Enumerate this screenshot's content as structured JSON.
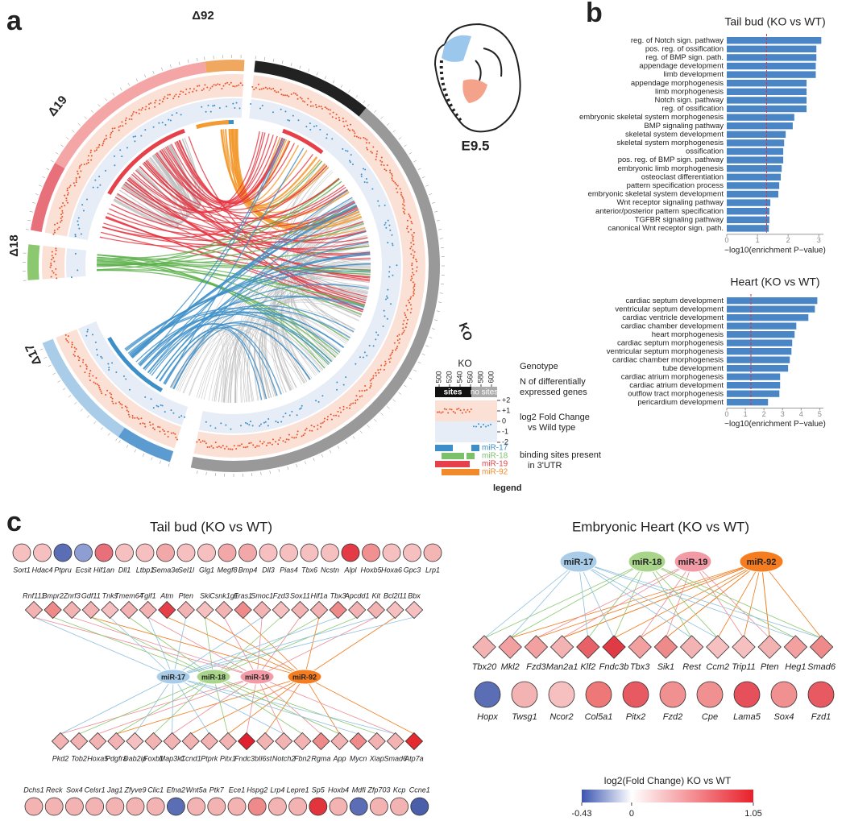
{
  "panel_labels": [
    "a",
    "b",
    "c"
  ],
  "circos": {
    "segments": [
      "Δ92",
      "Δ19",
      "Δ18",
      "Δ17",
      "KO"
    ],
    "stage": "E9.5",
    "legend": {
      "genotype": "KO",
      "sites": "sites",
      "no_sites": "no sites",
      "position_ticks": [
        500,
        520,
        540,
        560,
        580,
        600
      ],
      "fc_ticks": [
        {
          "value": 2,
          "label": "+2"
        },
        {
          "value": 1,
          "label": "+1"
        },
        0,
        -1,
        -2
      ],
      "mirs": [
        "miR-17",
        "miR-18",
        "miR-19",
        "miR-92"
      ],
      "mir_colors": [
        "#3c8fc8",
        "#7cc16a",
        "#e6404a",
        "#f08a2a"
      ],
      "genotype_label": "Genotype",
      "genes_label": [
        "N of differentially",
        "expressed genes"
      ],
      "fc_label": [
        "log2 Fold Change",
        "vs Wild type"
      ],
      "sites_label": [
        "binding sites present",
        "in 3'UTR"
      ],
      "title": "legend"
    }
  },
  "chart_data": [
    {
      "type": "barh",
      "title": "Tail bud (KO vs WT)",
      "color": "#4a86c5",
      "threshold": 1.3,
      "categories": [
        "reg. of Notch sign. pathway",
        "pos. reg. of ossification",
        "reg. of BMP sign. path.",
        "appendage development",
        "limb development",
        "appendage morphogenesis",
        "limb morphogenesis",
        "Notch sign. pathway",
        "reg. of ossification",
        "embryonic skeletal system morphogenesis",
        "BMP signaling pathway",
        "skeletal system development",
        "skeletal system morphogenesis",
        "ossification",
        "pos. reg. of BMP sign. pathway",
        "embryonic limb morphogenesis",
        "osteoclast differentiation",
        "pattern specification process",
        "embryonic skeletal system development",
        "Wnt receptor signaling pathway",
        "anterior/posterior pattern specification",
        "TGFBR signaling pathway",
        "canonical Wnt receptor sign. path."
      ],
      "values": [
        3.08,
        2.92,
        2.92,
        2.9,
        2.9,
        2.6,
        2.6,
        2.6,
        2.6,
        2.2,
        2.15,
        1.92,
        1.87,
        1.84,
        1.84,
        1.79,
        1.76,
        1.71,
        1.68,
        1.42,
        1.39,
        1.39,
        1.37
      ],
      "xlim": [
        0,
        3.15
      ],
      "xticks": [
        0,
        1,
        2,
        3
      ],
      "xlabel": "−log10(enrichment P−value)"
    },
    {
      "type": "barh",
      "title": "Heart (KO vs WT)",
      "color": "#4a86c5",
      "threshold": 1.3,
      "categories": [
        "cardiac septum development",
        "ventricular septum development",
        "cardiac ventricle development",
        "cardiac chamber development",
        "heart morphogenesis",
        "cardiac septum morphogenesis",
        "ventricular septum morphogenesis",
        "cardiac chamber morphogenesis",
        "tube development",
        "cardiac atrium morphogenesis",
        "cardiac atrium development",
        "outflow tract morphogenesis",
        "pericardium development"
      ],
      "values": [
        4.87,
        4.74,
        4.39,
        3.74,
        3.65,
        3.52,
        3.48,
        3.39,
        3.3,
        2.87,
        2.87,
        2.83,
        2.22
      ],
      "xlim": [
        0,
        5.2
      ],
      "xticks": [
        0,
        1,
        2,
        3,
        4,
        5
      ],
      "xlabel": "−log10(enrichment P−value)"
    }
  ],
  "network": {
    "mirs": [
      "miR-17",
      "miR-18",
      "miR-19",
      "miR-92"
    ],
    "mir_colors": [
      "#a9cce8",
      "#a8d58a",
      "#f29aa5",
      "#f57c1f"
    ],
    "edge_colors": [
      "#8ec0e0",
      "#8cc870",
      "#ee8a96",
      "#f07a1a"
    ],
    "tail_bud": {
      "title": "Tail bud (KO vs WT)",
      "rows": [
        {
          "genes": [
            "Sort1",
            "Hdac4",
            "Ptpru",
            "Ecsit",
            "Hif1an",
            "Dll1",
            "Ltbp1",
            "Sema3e",
            "Sel1l",
            "Glg1",
            "Megf8",
            "Bmp4",
            "Dll3",
            "Pias4",
            "Tbx6",
            "Ncstn",
            "Alpl",
            "Hoxb5",
            "Hoxa6",
            "Gpc3",
            "Lrp1"
          ],
          "colors": [
            "#f6c0c0",
            "#f6c0c0",
            "#5a6db5",
            "#8e9ed4",
            "#e8707a",
            "#f6c0c0",
            "#f6c0c0",
            "#f2a8a8",
            "#f6c0c0",
            "#f6c0c0",
            "#f2a8a8",
            "#f2a8a8",
            "#f6c0c0",
            "#f6c0c0",
            "#f6c0c0",
            "#f6c0c0",
            "#e23b45",
            "#f09090",
            "#f6c0c0",
            "#f6c0c0",
            "#f4b5b5"
          ]
        },
        {
          "genes": [
            "Rnf111",
            "Bmpr2",
            "Znrf3",
            "Gdf11",
            "Tnks",
            "Tmem64",
            "Tgif1",
            "Atm",
            "Pten",
            "Ski",
            "Csnk1g1",
            "Fras1",
            "Smoc1",
            "Fzd3",
            "Sox11",
            "Hif1a",
            "Tbx3",
            "Apcdd1",
            "Kit",
            "Bcl2l11",
            "Bbx"
          ],
          "colors": [
            "#f4b3b3",
            "#ee8a8a",
            "#f4b3b3",
            "#f4b3b3",
            "#f6c0c0",
            "#f4b3b3",
            "#f4b3b3",
            "#e5404a",
            "#f4b3b3",
            "#f6c0c0",
            "#f4b3b3",
            "#ee8a8a",
            "#f4b3b3",
            "#f6c0c0",
            "#f4b3b3",
            "#f4b3b3",
            "#ee8a8a",
            "#f4b3b3",
            "#f4b3b3",
            "#f6c0c0",
            "#f6c0c0"
          ]
        },
        {
          "genes": [
            "Pkd2",
            "Tob2",
            "Hoxa5",
            "Pdgfra",
            "Dab2ip",
            "Foxb1",
            "Map3k1",
            "Ccnd1",
            "Ptprk",
            "Pitx1",
            "Fndc3b",
            "Il6st",
            "Notch2",
            "Fbn2",
            "Rgma",
            "App",
            "Mycn",
            "Xiap",
            "Smad6",
            "Atp7a"
          ],
          "colors": [
            "#f4b3b3",
            "#f4b3b3",
            "#f4b3b3",
            "#f4b3b3",
            "#f6c0c0",
            "#f4b3b3",
            "#f4b3b3",
            "#f4b3b3",
            "#f4b3b3",
            "#f4b3b3",
            "#e0202e",
            "#f4b3b3",
            "#f4b3b3",
            "#f4b3b3",
            "#ee8a8a",
            "#f4b3b3",
            "#ee8a8a",
            "#f4b3b3",
            "#f4b3b3",
            "#e52a30"
          ]
        },
        {
          "genes": [
            "Dchs1",
            "Reck",
            "Sox4",
            "Celsr1",
            "Jag1",
            "Zfyve9",
            "Clic1",
            "Efna2",
            "Wnt5a",
            "Ptk7",
            "Ece1",
            "Hspg2",
            "Lrp4",
            "Lepre1",
            "Sp5",
            "Hoxb4",
            "Mdfi",
            "Zfp703",
            "Kcp",
            "Ccne1"
          ],
          "colors": [
            "#f4b3b3",
            "#f4b3b3",
            "#f4b3b3",
            "#f4b3b3",
            "#f4b3b3",
            "#f4b3b3",
            "#f4b3b3",
            "#5a6db5",
            "#f4b3b3",
            "#f4b3b3",
            "#f4b3b3",
            "#ee8a8a",
            "#f4b3b3",
            "#f4b3b3",
            "#e2343c",
            "#f4b3b3",
            "#5a6db5",
            "#f4b3b3",
            "#f4b3b3",
            "#4a5eaa"
          ]
        }
      ]
    },
    "heart": {
      "title": "Embryonic Heart (KO vs WT)",
      "rows": [
        {
          "genes": [
            "Tbx20",
            "Mkl2",
            "Fzd3",
            "Man2a1",
            "Klf2",
            "Fndc3b",
            "Tbx3",
            "Sik1",
            "Rest",
            "Ccm2",
            "Trip11",
            "Pten",
            "Heg1",
            "Smad6"
          ],
          "colors": [
            "#f4b3b3",
            "#f2a0a0",
            "#f2a0a0",
            "#f4b3b3",
            "#e86068",
            "#e03a44",
            "#f2a0a0",
            "#ee8a8a",
            "#f4b3b3",
            "#f6c0c0",
            "#f6c0c0",
            "#f4b3b3",
            "#f2a0a0",
            "#ee8a8a"
          ]
        },
        {
          "genes": [
            "Hopx",
            "Twsg1",
            "Ncor2",
            "Col5a1",
            "Pitx2",
            "Fzd2",
            "Cpe",
            "Lama5",
            "Sox4",
            "Fzd1"
          ],
          "colors": [
            "#5a6db5",
            "#f4b3b3",
            "#f6c0c0",
            "#ee7878",
            "#e85a62",
            "#f09090",
            "#f09090",
            "#e6505a",
            "#f09090",
            "#e85a62"
          ]
        }
      ]
    },
    "colorbar": {
      "title": "log2(Fold Change) KO vs WT",
      "lim": [
        -0.43,
        1.05
      ],
      "ticks": [
        -0.43,
        0,
        1.05
      ],
      "colors": [
        "#3a55b0",
        "#ffffff",
        "#e8202a"
      ]
    }
  }
}
